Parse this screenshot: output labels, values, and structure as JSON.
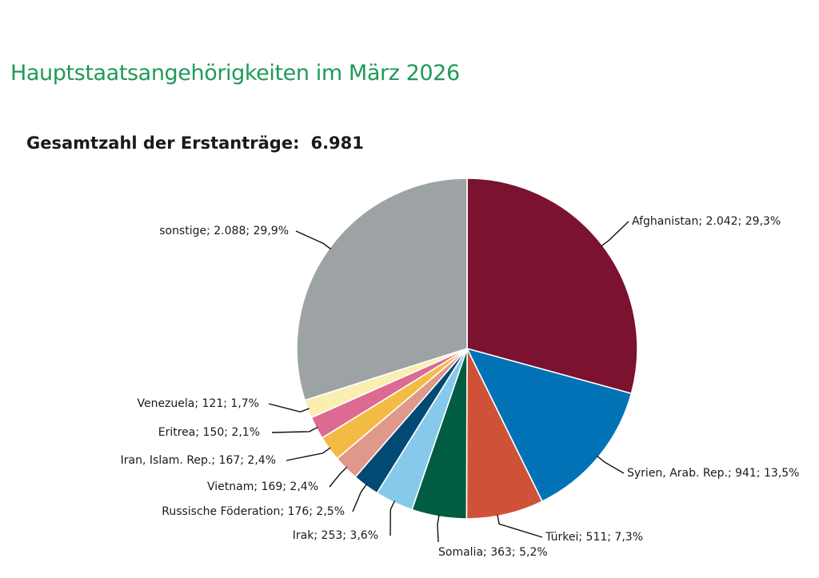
{
  "title": "Hauptstaatsangehörigkeiten im März 2026",
  "total": {
    "label": "Gesamtzahl der Erstanträge:",
    "value": "6.981"
  },
  "colors": {
    "title": "#1f9a57",
    "afghanistan": "#7a1230",
    "syrien": "#0072b5",
    "tuerkei": "#cf5238",
    "somalia": "#005c42",
    "irak": "#86c9ea",
    "russland": "#004a73",
    "vietnam": "#e0988b",
    "iran": "#f4bb44",
    "eritrea": "#dd6a92",
    "venezuela": "#faeeb0",
    "sonstige": "#9da2a5"
  },
  "chart_data": {
    "type": "pie",
    "title": "Hauptstaatsangehörigkeiten im März 2026",
    "total": 6981,
    "start_angle_deg": 0,
    "direction": "clockwise",
    "slices": [
      {
        "key": "afghanistan",
        "name": "Afghanistan",
        "value": 2042,
        "percent": 29.3,
        "label": "Afghanistan; 2.042; 29,3%",
        "color": "#7a1230"
      },
      {
        "key": "syrien",
        "name": "Syrien, Arab. Rep.",
        "value": 941,
        "percent": 13.5,
        "label": "Syrien, Arab. Rep.; 941; 13,5%",
        "color": "#0072b5"
      },
      {
        "key": "tuerkei",
        "name": "Türkei",
        "value": 511,
        "percent": 7.3,
        "label": "Türkei; 511; 7,3%",
        "color": "#cf5238"
      },
      {
        "key": "somalia",
        "name": "Somalia",
        "value": 363,
        "percent": 5.2,
        "label": "Somalia; 363; 5,2%",
        "color": "#005c42"
      },
      {
        "key": "irak",
        "name": "Irak",
        "value": 253,
        "percent": 3.6,
        "label": "Irak; 253; 3,6%",
        "color": "#86c9ea"
      },
      {
        "key": "russland",
        "name": "Russische Föderation",
        "value": 176,
        "percent": 2.5,
        "label": "Russische Föderation; 176; 2,5%",
        "color": "#004a73"
      },
      {
        "key": "vietnam",
        "name": "Vietnam",
        "value": 169,
        "percent": 2.4,
        "label": "Vietnam; 169; 2,4%",
        "color": "#e0988b"
      },
      {
        "key": "iran",
        "name": "Iran, Islam. Rep.",
        "value": 167,
        "percent": 2.4,
        "label": "Iran, Islam. Rep.; 167; 2,4%",
        "color": "#f4bb44"
      },
      {
        "key": "eritrea",
        "name": "Eritrea",
        "value": 150,
        "percent": 2.1,
        "label": "Eritrea; 150; 2,1%",
        "color": "#dd6a92"
      },
      {
        "key": "venezuela",
        "name": "Venezuela",
        "value": 121,
        "percent": 1.7,
        "label": "Venezuela; 121; 1,7%",
        "color": "#faeeb0"
      },
      {
        "key": "sonstige",
        "name": "sonstige",
        "value": 2088,
        "percent": 29.9,
        "label": "sonstige; 2.088; 29,9%",
        "color": "#9da2a5"
      }
    ]
  }
}
